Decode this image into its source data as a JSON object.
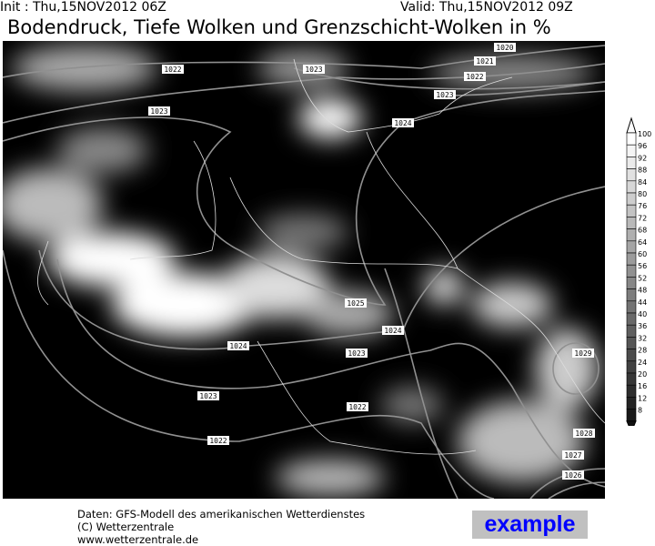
{
  "header": {
    "init": "Init : Thu,15NOV2012 06Z",
    "valid": "Valid: Thu,15NOV2012 09Z",
    "title": "Bodendruck, Tiefe Wolken und Grenzschicht-Wolken in %"
  },
  "isobar_labels": [
    "1022",
    "1023",
    "1020",
    "1021",
    "1022",
    "1023",
    "1023",
    "1024",
    "1025",
    "1024",
    "1024",
    "1023",
    "1023",
    "1022",
    "1022",
    "1029",
    "1028",
    "1027",
    "1026"
  ],
  "legend": {
    "unit": "%",
    "levels": [
      "100",
      "96",
      "92",
      "88",
      "84",
      "80",
      "76",
      "72",
      "68",
      "64",
      "60",
      "56",
      "52",
      "48",
      "44",
      "40",
      "36",
      "32",
      "28",
      "24",
      "20",
      "16",
      "12",
      "8"
    ]
  },
  "footer": {
    "line1": "Daten: GFS-Modell des amerikanischen Wetterdienstes",
    "line2": "(C) Wetterzentrale",
    "line3": "www.wetterzentrale.de",
    "badge": "example"
  },
  "colors": {
    "background": "#000000",
    "clouds": "#ffffff",
    "isobars": "#909090",
    "badge_text": "#0000ff",
    "badge_bg": "#c0c0c0"
  }
}
